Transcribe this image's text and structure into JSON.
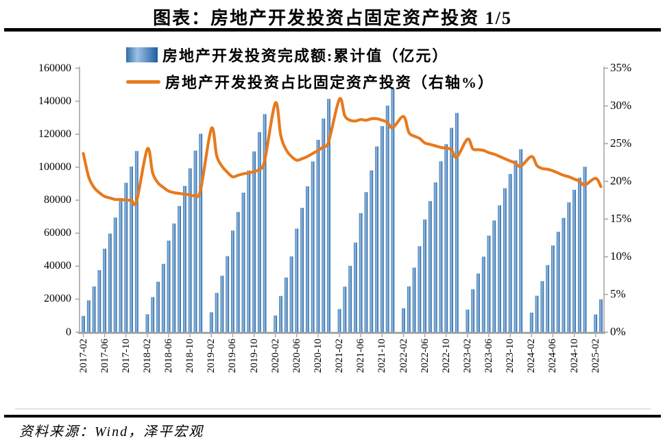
{
  "title": "图表：房地产开发投资占固定资产投资 1/5",
  "source_note": "资料来源：Wind，泽平宏观",
  "colors": {
    "bar_edge": "#2e6da6",
    "bar_light": "#9cc2e5",
    "bar_dark": "#1f5c9e",
    "line": "#e8791d",
    "axis": "#a6a6a6",
    "rule": "#000000",
    "text": "#000000"
  },
  "chart_data": {
    "type": "bar+line combo, dual axis",
    "title": "图表：房地产开发投资占固定资产投资 1/5",
    "legend_position": "top",
    "grid": false,
    "x": [
      "2017-02",
      "2017-03",
      "2017-04",
      "2017-05",
      "2017-06",
      "2017-07",
      "2017-08",
      "2017-09",
      "2017-10",
      "2017-11",
      "2017-12",
      "2018-02",
      "2018-03",
      "2018-04",
      "2018-05",
      "2018-06",
      "2018-07",
      "2018-08",
      "2018-09",
      "2018-10",
      "2018-11",
      "2018-12",
      "2019-02",
      "2019-03",
      "2019-04",
      "2019-05",
      "2019-06",
      "2019-07",
      "2019-08",
      "2019-09",
      "2019-10",
      "2019-11",
      "2019-12",
      "2020-02",
      "2020-03",
      "2020-04",
      "2020-05",
      "2020-06",
      "2020-07",
      "2020-08",
      "2020-09",
      "2020-10",
      "2020-11",
      "2020-12",
      "2021-02",
      "2021-03",
      "2021-04",
      "2021-05",
      "2021-06",
      "2021-07",
      "2021-08",
      "2021-09",
      "2021-10",
      "2021-11",
      "2021-12",
      "2022-02",
      "2022-03",
      "2022-04",
      "2022-05",
      "2022-06",
      "2022-07",
      "2022-08",
      "2022-09",
      "2022-10",
      "2022-11",
      "2022-12",
      "2023-02",
      "2023-03",
      "2023-04",
      "2023-05",
      "2023-06",
      "2023-07",
      "2023-08",
      "2023-09",
      "2023-10",
      "2023-11",
      "2023-12",
      "2024-02",
      "2024-03",
      "2024-04",
      "2024-05",
      "2024-06",
      "2024-07",
      "2024-08",
      "2024-09",
      "2024-10",
      "2024-11",
      "2024-12",
      "2025-02",
      "2025-03"
    ],
    "series": [
      {
        "name": "房地产开发投资完成额:累计值（亿元）",
        "type": "bar",
        "axis": "left",
        "values": [
          9854,
          19292,
          27732,
          37595,
          50610,
          59761,
          69494,
          80644,
          90544,
          100387,
          109799,
          10831,
          21291,
          30592,
          41420,
          55531,
          65886,
          76519,
          88665,
          99325,
          110083,
          120264,
          12090,
          23803,
          34217,
          46075,
          61609,
          72843,
          84589,
          98008,
          109603,
          121265,
          132194,
          10115,
          21963,
          33103,
          45920,
          62780,
          75325,
          88454,
          103484,
          116556,
          129492,
          141443,
          13986,
          27576,
          40240,
          54318,
          72179,
          84895,
          98060,
          112568,
          124934,
          137314,
          147602,
          14499,
          27765,
          39154,
          52134,
          68314,
          79462,
          90809,
          103559,
          113945,
          123863,
          132895,
          13669,
          25974,
          35514,
          45748,
          58550,
          67717,
          76900,
          87269,
          95922,
          104045,
          110913,
          11842,
          22082,
          30928,
          40632,
          52529,
          60877,
          69284,
          78680,
          86309,
          93634,
          100280,
          10720,
          19904
        ]
      },
      {
        "name": "房地产开发投资占比固定资产投资（右轴%）",
        "type": "line",
        "axis": "right",
        "values": [
          23.7,
          20.6,
          19.2,
          18.5,
          18.0,
          17.8,
          17.6,
          17.6,
          17.5,
          17.5,
          17.4,
          24.3,
          21.1,
          19.8,
          19.2,
          18.7,
          18.5,
          18.4,
          18.3,
          18.2,
          18.1,
          18.9,
          27.0,
          23.4,
          22.0,
          21.2,
          20.6,
          20.8,
          21.0,
          21.1,
          21.3,
          21.6,
          22.8,
          30.4,
          26.1,
          24.2,
          23.3,
          22.8,
          23.0,
          23.3,
          23.7,
          24.1,
          24.6,
          25.3,
          30.9,
          28.7,
          28.1,
          28.0,
          28.2,
          28.1,
          28.3,
          28.3,
          28.1,
          27.8,
          27.1,
          28.6,
          26.5,
          26.0,
          25.7,
          25.1,
          24.9,
          24.7,
          24.5,
          24.4,
          24.2,
          23.2,
          25.6,
          24.3,
          24.2,
          24.1,
          23.8,
          23.6,
          23.3,
          23.0,
          22.7,
          22.4,
          22.0,
          23.3,
          22.1,
          21.7,
          21.6,
          21.4,
          21.1,
          20.8,
          20.6,
          20.3,
          20.0,
          19.5,
          20.4,
          19.3
        ]
      }
    ],
    "left_axis": {
      "min": 0,
      "max": 160000,
      "step": 20000,
      "ticks": [
        "0",
        "20000",
        "40000",
        "60000",
        "80000",
        "100000",
        "120000",
        "140000",
        "160000"
      ]
    },
    "right_axis": {
      "min": 0,
      "max": 35,
      "step": 5,
      "unit": "%",
      "ticks": [
        "0%",
        "5%",
        "10%",
        "15%",
        "20%",
        "25%",
        "30%",
        "35%"
      ]
    },
    "x_ticks": [
      "2017-02",
      "2017-06",
      "2017-10",
      "2018-02",
      "2018-06",
      "2018-10",
      "2019-02",
      "2019-06",
      "2019-10",
      "2020-02",
      "2020-06",
      "2020-10",
      "2021-02",
      "2021-06",
      "2021-10",
      "2022-02",
      "2022-06",
      "2022-10",
      "2023-02",
      "2023-06",
      "2023-10",
      "2024-02",
      "2024-06",
      "2024-10",
      "2025-02"
    ]
  }
}
